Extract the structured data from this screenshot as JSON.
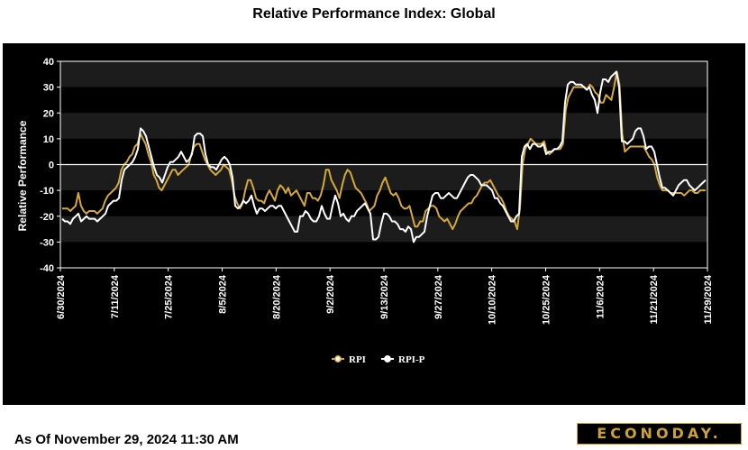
{
  "chart_data": {
    "type": "line",
    "title": "Relative Performance Index: Global",
    "ylabel": "Relative Performance",
    "xlabel": "",
    "ylim": [
      -40,
      40
    ],
    "yticks": [
      40,
      30,
      20,
      10,
      0,
      -10,
      -20,
      -30,
      -40
    ],
    "tick_labels": [
      "6/30/2024",
      "7/11/2024",
      "7/25/2024",
      "8/5/2024",
      "8/20/2024",
      "9/2/2024",
      "9/13/2024",
      "9/27/2024",
      "10/10/2024",
      "10/25/2024",
      "11/6/2024",
      "11/21/2024",
      "11/29/2024"
    ],
    "legend": [
      "RPI",
      "RPI-P"
    ],
    "colors": {
      "RPI": "#d4a93a",
      "RPI-P": "#ffffff",
      "zero_line": "#ffffff"
    },
    "series": [
      {
        "name": "RPI",
        "values": [
          -17,
          -17,
          -17,
          -18,
          -17,
          -16,
          -11,
          -16,
          -18,
          -19,
          -18,
          -18,
          -18,
          -19,
          -18,
          -17,
          -14,
          -12,
          -11,
          -10,
          -9,
          -7,
          -2,
          0,
          1,
          3,
          4,
          7,
          8,
          12,
          10,
          8,
          4,
          1,
          -4,
          -6,
          -9,
          -10,
          -8,
          -6,
          -4,
          -2,
          -2,
          -4,
          -3,
          -2,
          -1,
          0,
          4,
          7,
          8,
          8,
          5,
          2,
          0,
          -2,
          -3,
          -4,
          -3,
          -2,
          0,
          -1,
          -2,
          -6,
          -12,
          -15,
          -17,
          -15,
          -10,
          -6,
          -6,
          -9,
          -13,
          -14,
          -14,
          -15,
          -12,
          -10,
          -12,
          -14,
          -10,
          -8,
          -9,
          -11,
          -9,
          -12,
          -11,
          -10,
          -12,
          -14,
          -16,
          -11,
          -11,
          -13,
          -13,
          -14,
          -12,
          -8,
          -2,
          -2,
          -6,
          -8,
          -10,
          -13,
          -8,
          -4,
          -2,
          -3,
          -6,
          -9,
          -10,
          -11,
          -13,
          -15,
          -18,
          -17,
          -16,
          -12,
          -10,
          -7,
          -5,
          -8,
          -11,
          -12,
          -11,
          -13,
          -16,
          -17,
          -17,
          -16,
          -20,
          -24,
          -24,
          -22,
          -22,
          -18,
          -17,
          -16,
          -16,
          -17,
          -20,
          -21,
          -22,
          -21,
          -23,
          -25,
          -23,
          -20,
          -18,
          -17,
          -16,
          -15,
          -15,
          -13,
          -12,
          -10,
          -8,
          -7,
          -7,
          -6,
          -8,
          -10,
          -12,
          -13,
          -15,
          -18,
          -20,
          -21,
          -22,
          -25,
          -17,
          0,
          6,
          8,
          10,
          9,
          8,
          8,
          8,
          9,
          5,
          4,
          5,
          6,
          6,
          6,
          8,
          21,
          26,
          28,
          30,
          30,
          30,
          30,
          30,
          29,
          31,
          30,
          28,
          27,
          24,
          24,
          27,
          26,
          25,
          30,
          36,
          31,
          12,
          5,
          6,
          7,
          7,
          7,
          7,
          7,
          7,
          5,
          3,
          2,
          0,
          -5,
          -8,
          -10,
          -10,
          -10,
          -11,
          -11,
          -11,
          -11,
          -11,
          -12,
          -11,
          -10,
          -10,
          -11,
          -11,
          -10,
          -10,
          -10
        ]
      },
      {
        "name": "RPI-P",
        "values": [
          -21,
          -22,
          -22,
          -23,
          -21,
          -20,
          -19,
          -22,
          -21,
          -20,
          -21,
          -21,
          -21,
          -22,
          -21,
          -20,
          -19,
          -16,
          -15,
          -14,
          -14,
          -13,
          -6,
          -2,
          -1,
          0,
          1,
          3,
          6,
          14,
          13,
          11,
          7,
          3,
          -1,
          -4,
          -5,
          -7,
          -4,
          -1,
          1,
          1,
          2,
          3,
          5,
          3,
          1,
          2,
          4,
          11,
          12,
          12,
          11,
          4,
          0,
          -1,
          -1,
          -2,
          0,
          2,
          3,
          2,
          0,
          -5,
          -16,
          -17,
          -16,
          -14,
          -15,
          -14,
          -12,
          -16,
          -19,
          -17,
          -17,
          -18,
          -17,
          -16,
          -16,
          -17,
          -16,
          -16,
          -18,
          -20,
          -22,
          -24,
          -26,
          -26,
          -20,
          -20,
          -18,
          -19,
          -21,
          -22,
          -22,
          -20,
          -16,
          -19,
          -21,
          -21,
          -16,
          -12,
          -15,
          -20,
          -19,
          -21,
          -22,
          -20,
          -20,
          -18,
          -17,
          -16,
          -15,
          -17,
          -19,
          -29,
          -29,
          -28,
          -23,
          -19,
          -19,
          -20,
          -22,
          -22,
          -23,
          -25,
          -25,
          -26,
          -24,
          -25,
          -30,
          -28,
          -28,
          -27,
          -26,
          -20,
          -16,
          -12,
          -11,
          -11,
          -13,
          -13,
          -12,
          -11,
          -12,
          -13,
          -13,
          -11,
          -9,
          -7,
          -5,
          -4,
          -4,
          -5,
          -6,
          -8,
          -8,
          -8,
          -9,
          -10,
          -13,
          -13,
          -15,
          -16,
          -18,
          -20,
          -22,
          -22,
          -20,
          -19,
          3,
          7,
          8,
          6,
          8,
          8,
          7,
          7,
          8,
          4,
          5,
          5,
          6,
          6,
          7,
          9,
          24,
          31,
          32,
          32,
          31,
          31,
          31,
          30,
          29,
          30,
          27,
          25,
          20,
          28,
          33,
          33,
          32,
          34,
          35,
          36,
          30,
          9,
          9,
          8,
          9,
          10,
          13,
          14,
          14,
          11,
          6,
          7,
          7,
          5,
          0,
          -5,
          -9,
          -9,
          -10,
          -11,
          -12,
          -10,
          -8,
          -7,
          -6,
          -6,
          -8,
          -9,
          -10,
          -9,
          -8,
          -7,
          -6
        ]
      }
    ]
  },
  "logo_text": "ECONODAY.",
  "as_of": "As Of November 29, 2024 11:30 AM"
}
